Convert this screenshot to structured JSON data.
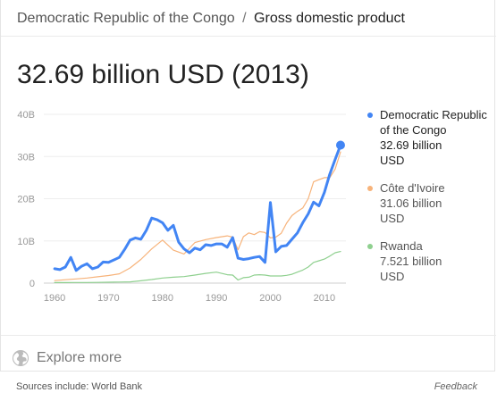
{
  "breadcrumb": {
    "entity": "Democratic Republic of the Congo",
    "separator": "/",
    "metric": "Gross domestic product"
  },
  "headline": "32.69 billion USD (2013)",
  "legend": [
    {
      "name": "Democratic Republic of the Congo",
      "value": "32.69 billion",
      "unit": "USD",
      "color": "#4285f4"
    },
    {
      "name": "Côte d'Ivoire",
      "value": "31.06 billion",
      "unit": "USD",
      "color": "#f7b37a"
    },
    {
      "name": "Rwanda",
      "value": "7.521 billion",
      "unit": "USD",
      "color": "#8fd08f"
    }
  ],
  "explore": {
    "label": "Explore more",
    "icon": "globe-icon"
  },
  "footer": {
    "sources": "Sources include: World Bank",
    "feedback": "Feedback"
  },
  "chart_data": {
    "type": "line",
    "title": "",
    "xlabel": "",
    "ylabel": "",
    "xlim": [
      1958,
      2014
    ],
    "ylim": [
      0,
      40
    ],
    "y_ticks": [
      0,
      10,
      20,
      30,
      40
    ],
    "y_tick_labels": [
      "0",
      "10B",
      "20B",
      "30B",
      "40B"
    ],
    "x_ticks": [
      1960,
      1970,
      1980,
      1990,
      2000,
      2010
    ],
    "x_tick_labels": [
      "1960",
      "1970",
      "1980",
      "1990",
      "2000",
      "2010"
    ],
    "grid": "horizontal",
    "legend_position": "right",
    "series": [
      {
        "name": "Democratic Republic of the Congo",
        "color": "#4285f4",
        "x": [
          1960,
          1961,
          1962,
          1963,
          1964,
          1965,
          1966,
          1967,
          1968,
          1969,
          1970,
          1971,
          1972,
          1973,
          1974,
          1975,
          1976,
          1977,
          1978,
          1979,
          1980,
          1981,
          1982,
          1983,
          1984,
          1985,
          1986,
          1987,
          1988,
          1989,
          1990,
          1991,
          1992,
          1993,
          1994,
          1995,
          1996,
          1997,
          1998,
          1999,
          2000,
          2001,
          2002,
          2003,
          2004,
          2005,
          2006,
          2007,
          2008,
          2009,
          2010,
          2011,
          2012,
          2013
        ],
        "values": [
          3.4,
          3.2,
          3.8,
          6.1,
          3.0,
          4.0,
          4.6,
          3.4,
          3.8,
          5.0,
          4.9,
          5.5,
          6.1,
          8.0,
          10.2,
          10.7,
          10.4,
          12.5,
          15.4,
          15.0,
          14.3,
          12.5,
          13.7,
          9.7,
          8.1,
          7.2,
          8.3,
          7.9,
          9.1,
          8.9,
          9.3,
          9.3,
          8.5,
          10.8,
          5.9,
          5.6,
          5.8,
          6.1,
          6.3,
          4.9,
          19.1,
          7.4,
          8.7,
          8.9,
          10.4,
          11.9,
          14.3,
          16.4,
          19.2,
          18.3,
          21.5,
          25.8,
          29.3,
          32.7
        ]
      },
      {
        "name": "Côte d'Ivoire",
        "color": "#f7b37a",
        "x": [
          1960,
          1962,
          1964,
          1966,
          1968,
          1970,
          1972,
          1974,
          1976,
          1978,
          1980,
          1982,
          1984,
          1986,
          1988,
          1990,
          1992,
          1993,
          1994,
          1995,
          1996,
          1997,
          1998,
          1999,
          2000,
          2001,
          2002,
          2003,
          2004,
          2005,
          2006,
          2007,
          2008,
          2009,
          2010,
          2011,
          2012,
          2013
        ],
        "values": [
          0.6,
          0.8,
          1.0,
          1.2,
          1.5,
          1.8,
          2.2,
          3.6,
          5.6,
          8.1,
          10.2,
          7.8,
          6.9,
          9.6,
          10.3,
          10.8,
          11.2,
          10.9,
          7.9,
          11.0,
          11.9,
          11.5,
          12.2,
          12.0,
          10.7,
          10.9,
          11.8,
          14.2,
          16.0,
          17.0,
          17.8,
          20.0,
          24.0,
          24.5,
          25.0,
          25.0,
          27.0,
          31.1
        ]
      },
      {
        "name": "Rwanda",
        "color": "#8fd08f",
        "x": [
          1960,
          1962,
          1964,
          1966,
          1968,
          1970,
          1972,
          1974,
          1976,
          1978,
          1980,
          1982,
          1984,
          1986,
          1988,
          1990,
          1992,
          1993,
          1994,
          1995,
          1996,
          1997,
          1998,
          1999,
          2000,
          2001,
          2002,
          2003,
          2004,
          2005,
          2006,
          2007,
          2008,
          2009,
          2010,
          2011,
          2012,
          2013
        ],
        "values": [
          0.12,
          0.13,
          0.14,
          0.15,
          0.17,
          0.22,
          0.25,
          0.3,
          0.55,
          0.85,
          1.2,
          1.4,
          1.55,
          1.9,
          2.3,
          2.6,
          2.0,
          1.9,
          0.75,
          1.3,
          1.4,
          1.9,
          2.0,
          1.9,
          1.7,
          1.7,
          1.7,
          1.85,
          2.1,
          2.6,
          3.1,
          3.8,
          4.9,
          5.3,
          5.7,
          6.4,
          7.2,
          7.5
        ]
      }
    ]
  }
}
